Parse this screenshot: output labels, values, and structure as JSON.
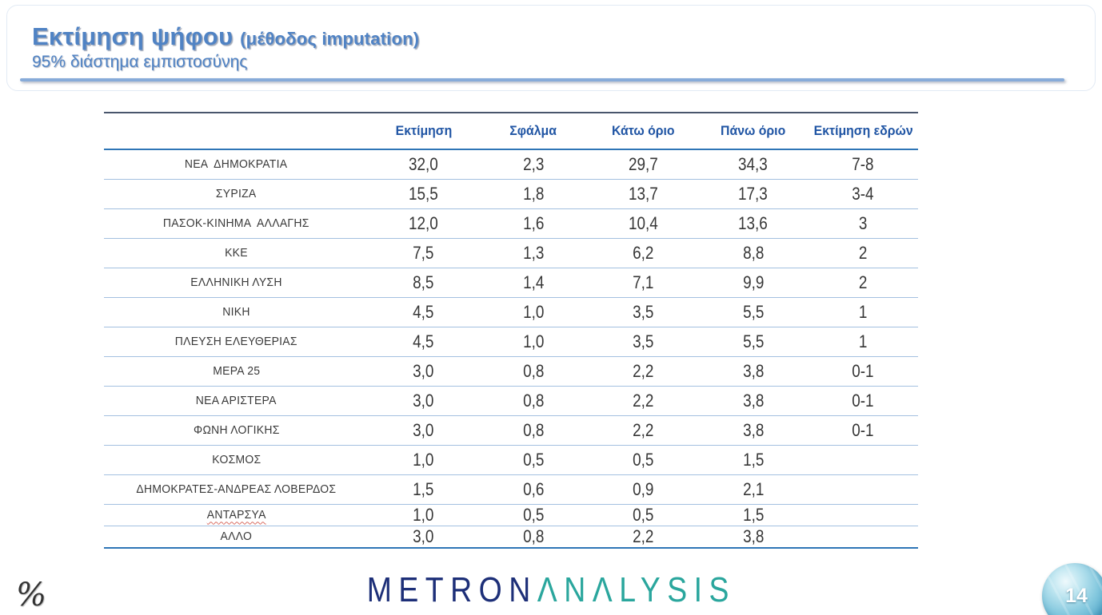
{
  "header": {
    "title": "Εκτίμηση ψήφου ",
    "title_paren": "(μέθοδος imputation)",
    "subtitle": "95% διάστημα εμπιστοσύνης"
  },
  "table": {
    "columns": [
      "Εκτίμηση",
      "Σφάλμα",
      "Κάτω όριο",
      "Πάνω όριο",
      "Εκτίμηση εδρών"
    ],
    "rows": [
      {
        "party": "ΝΕΑ  ΔΗΜΟΚΡΑΤΙΑ",
        "values": [
          "32,0",
          "2,3",
          "29,7",
          "34,3",
          "7-8"
        ]
      },
      {
        "party": "ΣΥΡΙΖΑ",
        "values": [
          "15,5",
          "1,8",
          "13,7",
          "17,3",
          "3-4"
        ]
      },
      {
        "party": "ΠΑΣΟΚ-ΚΙΝΗΜΑ  ΑΛΛΑΓΗΣ",
        "values": [
          "12,0",
          "1,6",
          "10,4",
          "13,6",
          "3"
        ]
      },
      {
        "party": "ΚΚΕ",
        "values": [
          "7,5",
          "1,3",
          "6,2",
          "8,8",
          "2"
        ]
      },
      {
        "party": "ΕΛΛΗΝΙΚΗ ΛΥΣΗ",
        "values": [
          "8,5",
          "1,4",
          "7,1",
          "9,9",
          "2"
        ]
      },
      {
        "party": "ΝΙΚΗ",
        "values": [
          "4,5",
          "1,0",
          "3,5",
          "5,5",
          "1"
        ]
      },
      {
        "party": "ΠΛΕΥΣΗ ΕΛΕΥΘΕΡΙΑΣ",
        "values": [
          "4,5",
          "1,0",
          "3,5",
          "5,5",
          "1"
        ]
      },
      {
        "party": "ΜΕΡΑ 25",
        "values": [
          "3,0",
          "0,8",
          "2,2",
          "3,8",
          "0-1"
        ]
      },
      {
        "party": "ΝΕΑ ΑΡΙΣΤΕΡΑ",
        "values": [
          "3,0",
          "0,8",
          "2,2",
          "3,8",
          "0-1"
        ]
      },
      {
        "party": "ΦΩΝΗ ΛΟΓΙΚΗΣ",
        "values": [
          "3,0",
          "0,8",
          "2,2",
          "3,8",
          "0-1"
        ]
      },
      {
        "party": "ΚΟΣΜΟΣ",
        "values": [
          "1,0",
          "0,5",
          "0,5",
          "1,5",
          ""
        ]
      },
      {
        "party": "ΔΗΜΟΚΡΑΤΕΣ-ΑΝΔΡΕΑΣ ΛΟΒΕΡΔΟΣ",
        "values": [
          "1,5",
          "0,6",
          "0,9",
          "2,1",
          ""
        ]
      },
      {
        "party": "ΑΝΤΑΡΣΥΑ",
        "values": [
          "1,0",
          "0,5",
          "0,5",
          "1,5",
          ""
        ],
        "spellcheck_underline": true,
        "short_row": true
      },
      {
        "party": "ΑΛΛΟ",
        "values": [
          "3,0",
          "0,8",
          "2,2",
          "3,8",
          ""
        ],
        "short_row": true
      }
    ]
  },
  "footer": {
    "percent_mark": "%",
    "logo_part1": "METRON",
    "logo_part2": "ΛNΛLYSIS",
    "page_number": "14"
  },
  "colors": {
    "title_blue": "#5083c4",
    "header_blue": "#2055a4",
    "rule_blue": "#2e75b6",
    "rule_dark": "#49566c",
    "separator_blue": "#a3c0e0",
    "underline_blue": "#87abd9",
    "logo_navy": "#1d2f78",
    "logo_teal": "#2aa69d",
    "ball_blue": "#55a9cb",
    "spellcheck_red": "#d96c60"
  }
}
